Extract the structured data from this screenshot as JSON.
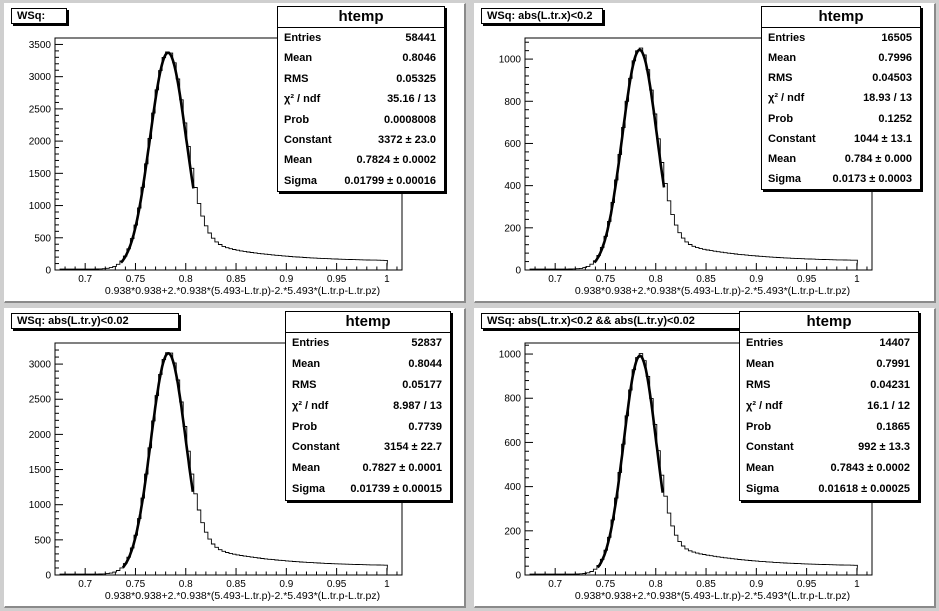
{
  "common": {
    "xlabel": "0.938*0.938+2.*0.938*(5.493-L.tr.p)-2.*5.493*(L.tr.p-L.tr.pz)",
    "xlim": [
      0.67,
      1.015
    ],
    "xticks": [
      "0.7",
      "0.75",
      "0.8",
      "0.85",
      "0.9",
      "0.95",
      "1"
    ],
    "stats_title": "htemp",
    "stat_labels": [
      "Entries",
      "Mean",
      "RMS",
      "χ² / ndf",
      "Prob",
      "Constant",
      "Mean",
      "Sigma"
    ]
  },
  "chart_data": [
    {
      "type": "histogram",
      "title": "WSq:",
      "ylim": [
        0,
        3600
      ],
      "yticks": [
        "0",
        "500",
        "1000",
        "1500",
        "2000",
        "2500",
        "3000",
        "3500"
      ],
      "peak": 3372,
      "peak_x": 0.7824,
      "sigma": 0.01799,
      "stats": [
        "58441",
        "0.8046",
        "0.05325",
        "35.16 / 13",
        "0.0008008",
        "3372 ± 23.0",
        "0.7824 ± 0.0002",
        "0.01799 ± 0.00016"
      ]
    },
    {
      "type": "histogram",
      "title": "WSq: abs(L.tr.x)<0.2",
      "ylim": [
        0,
        1100
      ],
      "yticks": [
        "0",
        "200",
        "400",
        "600",
        "800",
        "1000"
      ],
      "peak": 1044,
      "peak_x": 0.784,
      "sigma": 0.0173,
      "stats": [
        "16505",
        "0.7996",
        "0.04503",
        "18.93 / 13",
        "0.1252",
        "1044 ± 13.1",
        "0.784 ± 0.000",
        "0.0173 ± 0.0003"
      ]
    },
    {
      "type": "histogram",
      "title": "WSq: abs(L.tr.y)<0.02",
      "ylim": [
        0,
        3300
      ],
      "yticks": [
        "0",
        "500",
        "1000",
        "1500",
        "2000",
        "2500",
        "3000"
      ],
      "peak": 3154,
      "peak_x": 0.7827,
      "sigma": 0.01739,
      "stats": [
        "52837",
        "0.8044",
        "0.05177",
        "8.987 / 13",
        "0.7739",
        "3154 ± 22.7",
        "0.7827 ± 0.0001",
        "0.01739 ± 0.00015"
      ]
    },
    {
      "type": "histogram",
      "title": "WSq: abs(L.tr.x)<0.2 && abs(L.tr.y)<0.02",
      "ylim": [
        0,
        1050
      ],
      "yticks": [
        "0",
        "200",
        "400",
        "600",
        "800",
        "1000"
      ],
      "peak": 992,
      "peak_x": 0.7843,
      "sigma": 0.01618,
      "stats": [
        "14407",
        "0.7991",
        "0.04231",
        "16.1 / 12",
        "0.1865",
        "992 ± 13.3",
        "0.7843 ± 0.0002",
        "0.01618 ± 0.00025"
      ]
    }
  ]
}
